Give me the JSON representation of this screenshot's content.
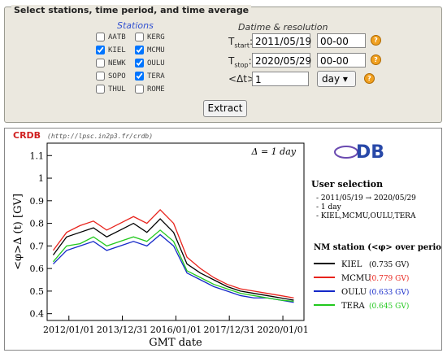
{
  "form": {
    "legend": "Select stations, time period, and time average",
    "stations_title": "Stations",
    "stations": [
      {
        "name": "AATB",
        "checked": false
      },
      {
        "name": "KERG",
        "checked": false
      },
      {
        "name": "KIEL",
        "checked": true
      },
      {
        "name": "MCMU",
        "checked": true
      },
      {
        "name": "NEWK",
        "checked": false
      },
      {
        "name": "OULU",
        "checked": true
      },
      {
        "name": "SOPO",
        "checked": false
      },
      {
        "name": "TERA",
        "checked": true
      },
      {
        "name": "THUL",
        "checked": false
      },
      {
        "name": "ROME",
        "checked": false
      }
    ],
    "datime_title": "Datime & resolution",
    "tstart": {
      "label": [
        "T",
        "start",
        ":"
      ],
      "date": "2011/05/19",
      "time": "00-00"
    },
    "tstop": {
      "label": [
        "T",
        "stop",
        ":"
      ],
      "date": "2020/05/29",
      "time": "00-00"
    },
    "dt": {
      "label": "<Δt>:",
      "value": "1",
      "unit": "day"
    },
    "help_icon": "?",
    "button": "Extract"
  },
  "chart_data": {
    "type": "line",
    "brand": "CRDB",
    "url": "(http://lpsc.in2p3.fr/crdb)",
    "logo_text": "DB",
    "annotation": "Δ = 1 day",
    "y_label": "<φ>Δ (t)   [GV]",
    "x_label": "GMT date",
    "x": [
      "2011/06/01",
      "2011/12/01",
      "2012/06/01",
      "2012/12/01",
      "2013/06/01",
      "2013/12/01",
      "2014/06/01",
      "2014/12/01",
      "2015/06/01",
      "2015/12/01",
      "2016/06/01",
      "2016/12/01",
      "2017/06/01",
      "2017/12/01",
      "2018/06/01",
      "2018/12/01",
      "2019/06/01",
      "2019/12/01",
      "2020/05/29"
    ],
    "xlim": [
      "2011/03/10",
      "2020/10/15"
    ],
    "xticks": [
      "2012/01/01",
      "2013/12/31",
      "2016/01/01",
      "2017/12/31",
      "2020/01/01"
    ],
    "ylim": [
      0.37,
      1.155
    ],
    "yticks": [
      0.4,
      0.5,
      0.6,
      0.7,
      0.8,
      0.9,
      1,
      1.1
    ],
    "side_title": "User selection",
    "side_lines": [
      "- 2011/05/19 → 2020/05/29",
      "- 1 day",
      "- KIEL,MCMU,OULU,TERA"
    ],
    "legend_title": "NM station (<φ> over period)",
    "series": [
      {
        "name": "KIEL",
        "color": "#000000",
        "mean": 0.735,
        "mean_label": "(0.735 GV)",
        "values": [
          0.66,
          0.74,
          0.76,
          0.78,
          0.74,
          0.77,
          0.8,
          0.76,
          0.82,
          0.76,
          0.62,
          0.58,
          0.55,
          0.52,
          0.5,
          0.49,
          0.48,
          0.47,
          0.46
        ]
      },
      {
        "name": "MCMU",
        "color": "#e8231c",
        "mean": 0.779,
        "mean_label": "(0.779 GV)",
        "values": [
          0.68,
          0.76,
          0.79,
          0.81,
          0.77,
          0.8,
          0.83,
          0.8,
          0.86,
          0.8,
          0.65,
          0.6,
          0.56,
          0.53,
          0.51,
          0.5,
          0.49,
          0.48,
          0.47
        ]
      },
      {
        "name": "OULU",
        "color": "#1428c8",
        "mean": 0.633,
        "mean_label": "(0.633 GV)",
        "values": [
          0.62,
          0.68,
          0.7,
          0.72,
          0.68,
          0.7,
          0.72,
          0.7,
          0.75,
          0.7,
          0.58,
          0.55,
          0.52,
          0.5,
          0.48,
          0.47,
          0.47,
          0.46,
          0.45
        ]
      },
      {
        "name": "TERA",
        "color": "#22c81e",
        "mean": 0.645,
        "mean_label": "(0.645 GV)",
        "values": [
          0.63,
          0.7,
          0.71,
          0.74,
          0.7,
          0.72,
          0.74,
          0.72,
          0.77,
          0.72,
          0.59,
          0.56,
          0.53,
          0.51,
          0.49,
          0.48,
          0.47,
          0.46,
          0.455
        ]
      }
    ]
  }
}
